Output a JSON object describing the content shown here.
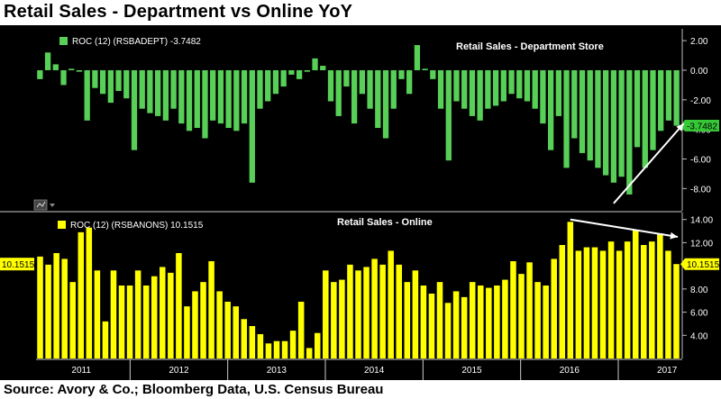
{
  "title": "Retail Sales - Department vs Online YoY",
  "source": "Source: Avory & Co.; Bloomberg Data, U.S. Census Bureau",
  "colors": {
    "background": "#000000",
    "department_bars": "#58d058",
    "online_bars": "#ffff00",
    "department_last_label_bg": "#37c837",
    "online_last_label_bg": "#ffff00",
    "annotation": "#ffffff"
  },
  "chart_data": [
    {
      "type": "bar",
      "title": "Retail Sales - Department Store",
      "legend": "ROC (12) (RSBADEPT) -3.7482",
      "last_value_label": "-3.7482",
      "ylim": [
        -9.5,
        2.8
      ],
      "yticks": [
        "2.00",
        "0.00",
        "-2.00",
        "-4.00",
        "-6.00",
        "-8.00"
      ],
      "ytick_values": [
        2,
        0,
        -2,
        -4,
        -6,
        -8
      ],
      "values": [
        -0.6,
        1.2,
        0.4,
        -1.0,
        0.1,
        -0.1,
        -3.4,
        -1.2,
        -1.6,
        -2.2,
        -1.4,
        -1.9,
        -5.4,
        -2.6,
        -2.9,
        -3.1,
        -3.4,
        -2.6,
        -3.6,
        -4.1,
        -3.9,
        -4.6,
        -3.4,
        -3.6,
        -3.9,
        -4.1,
        -3.6,
        -7.6,
        -2.6,
        -2.1,
        -1.6,
        -1.1,
        -0.3,
        -0.6,
        -0.1,
        0.8,
        0.3,
        -2.1,
        -3.1,
        -1.1,
        -3.6,
        -1.6,
        -2.6,
        -3.9,
        -4.6,
        -2.6,
        -0.6,
        -1.6,
        1.7,
        0.1,
        -0.6,
        -2.6,
        -6.1,
        -2.1,
        -2.6,
        -3.1,
        -3.4,
        -2.6,
        -2.4,
        -2.1,
        -1.6,
        -1.9,
        -2.1,
        -2.6,
        -3.6,
        -5.4,
        -3.1,
        -6.6,
        -4.6,
        -5.6,
        -6.1,
        -6.6,
        -7.1,
        -7.6,
        -7.2,
        -8.4,
        -5.2,
        -6.6,
        -5.4,
        -4.1,
        -3.4,
        -3.7482
      ],
      "annotation": "upward-arrow"
    },
    {
      "type": "bar",
      "title": "Retail Sales - Online",
      "legend": "ROC (12) (RSBANONS) 10.1515",
      "last_value_label": "10.1515",
      "ylim": [
        2.0,
        14.6
      ],
      "yticks": [
        "14.00",
        "12.00",
        "10.00",
        "8.00",
        "6.00",
        "4.00"
      ],
      "ytick_values": [
        14,
        12,
        10,
        8,
        6,
        4
      ],
      "values": [
        10.8,
        10.1,
        11.1,
        10.6,
        8.6,
        12.9,
        13.3,
        9.6,
        5.2,
        9.6,
        8.3,
        8.3,
        9.6,
        8.3,
        9.1,
        9.9,
        9.4,
        11.1,
        6.5,
        7.8,
        8.6,
        10.4,
        7.8,
        6.9,
        6.5,
        5.4,
        4.8,
        4.1,
        3.3,
        3.5,
        3.5,
        4.4,
        6.9,
        2.9,
        4.2,
        9.6,
        8.6,
        8.8,
        10.1,
        9.6,
        9.9,
        10.6,
        10.1,
        11.3,
        10.1,
        8.6,
        9.6,
        8.3,
        7.6,
        8.6,
        6.8,
        7.8,
        7.3,
        8.6,
        8.3,
        8.1,
        8.3,
        8.8,
        10.4,
        9.3,
        10.3,
        8.6,
        8.3,
        10.6,
        11.8,
        13.8,
        11.3,
        11.6,
        11.6,
        11.3,
        12.1,
        11.3,
        12.1,
        13.1,
        11.8,
        12.1,
        12.8,
        11.3,
        10.1515
      ],
      "annotation": "flat-trend-arrow"
    }
  ],
  "x_axis": {
    "labels": [
      "2011",
      "2012",
      "2013",
      "2014",
      "2015",
      "2016",
      "2017"
    ]
  }
}
